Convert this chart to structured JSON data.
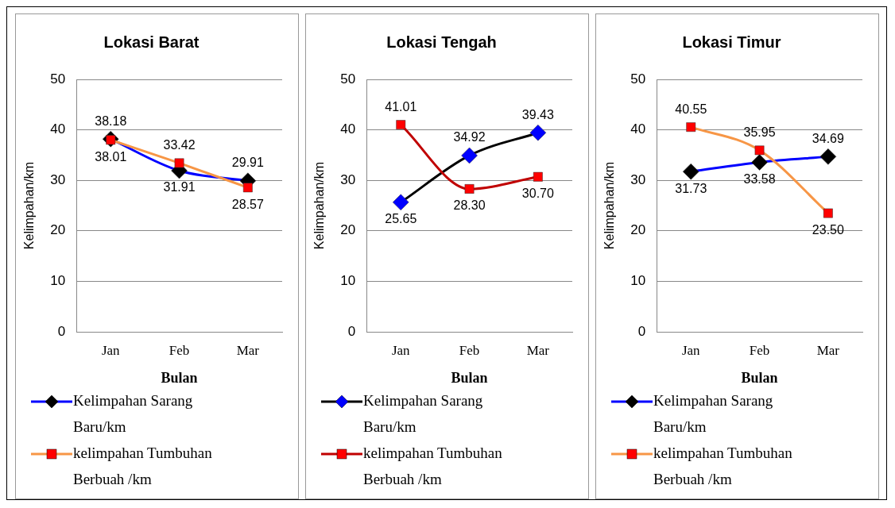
{
  "chart_data": [
    {
      "type": "line",
      "title": "Lokasi Barat",
      "xlabel": "Bulan",
      "ylabel": "Kelimpahan/km",
      "categories": [
        "Jan",
        "Feb",
        "Mar"
      ],
      "ylim": [
        0,
        50
      ],
      "yticks": [
        0,
        10,
        20,
        30,
        40,
        50
      ],
      "grid": "y",
      "legend": "bottom",
      "data_labels": true,
      "series": [
        {
          "name": "Kelimpahan Sarang Baru/km",
          "color": "#0000ff",
          "colors": [
            "#000000",
            "#000000",
            "#000000"
          ],
          "marker": "diamond",
          "values": [
            38.18,
            31.91,
            29.91
          ]
        },
        {
          "name": "kelimpahan Tumbuhan Berbuah /km",
          "color": "#f79646",
          "colors": [
            "#ff0000",
            "#ff0000",
            "#ff0000"
          ],
          "marker": "square",
          "values": [
            38.01,
            33.42,
            28.57
          ]
        }
      ]
    },
    {
      "type": "line",
      "title": "Lokasi Tengah",
      "xlabel": "Bulan",
      "ylabel": "Kelimpahan/km",
      "categories": [
        "Jan",
        "Feb",
        "Mar"
      ],
      "ylim": [
        0,
        50
      ],
      "yticks": [
        0,
        10,
        20,
        30,
        40,
        50
      ],
      "grid": "y",
      "legend": "bottom",
      "data_labels": true,
      "series": [
        {
          "name": "Kelimpahan Sarang Baru/km",
          "color": "#000000",
          "colors": [
            "#0000ff",
            "#0000ff",
            "#0000ff"
          ],
          "marker": "diamond",
          "values": [
            25.65,
            34.92,
            39.43
          ]
        },
        {
          "name": "kelimpahan Tumbuhan Berbuah /km",
          "color": "#c00000",
          "colors": [
            "#ff0000",
            "#ff0000",
            "#ff0000"
          ],
          "marker": "square",
          "values": [
            41.01,
            28.3,
            30.7
          ],
          "value_labels": [
            "41.01",
            "28.30",
            "30.70"
          ]
        }
      ]
    },
    {
      "type": "line",
      "title": "Lokasi Timur",
      "xlabel": "Bulan",
      "ylabel": "Kelimpahan/km",
      "categories": [
        "Jan",
        "Feb",
        "Mar"
      ],
      "ylim": [
        0,
        50
      ],
      "yticks": [
        0,
        10,
        20,
        30,
        40,
        50
      ],
      "grid": "y",
      "legend": "bottom",
      "data_labels": true,
      "series": [
        {
          "name": "Kelimpahan Sarang Baru/km",
          "color": "#0000ff",
          "colors": [
            "#000000",
            "#000000",
            "#000000"
          ],
          "marker": "diamond",
          "values": [
            31.73,
            33.58,
            34.69
          ]
        },
        {
          "name": "kelimpahan Tumbuhan Berbuah /km",
          "color": "#f79646",
          "colors": [
            "#ff0000",
            "#ff0000",
            "#ff0000"
          ],
          "marker": "square",
          "values": [
            40.55,
            35.95,
            23.5
          ],
          "value_labels": [
            "40.55",
            "35.95",
            "23.50"
          ]
        }
      ]
    }
  ]
}
